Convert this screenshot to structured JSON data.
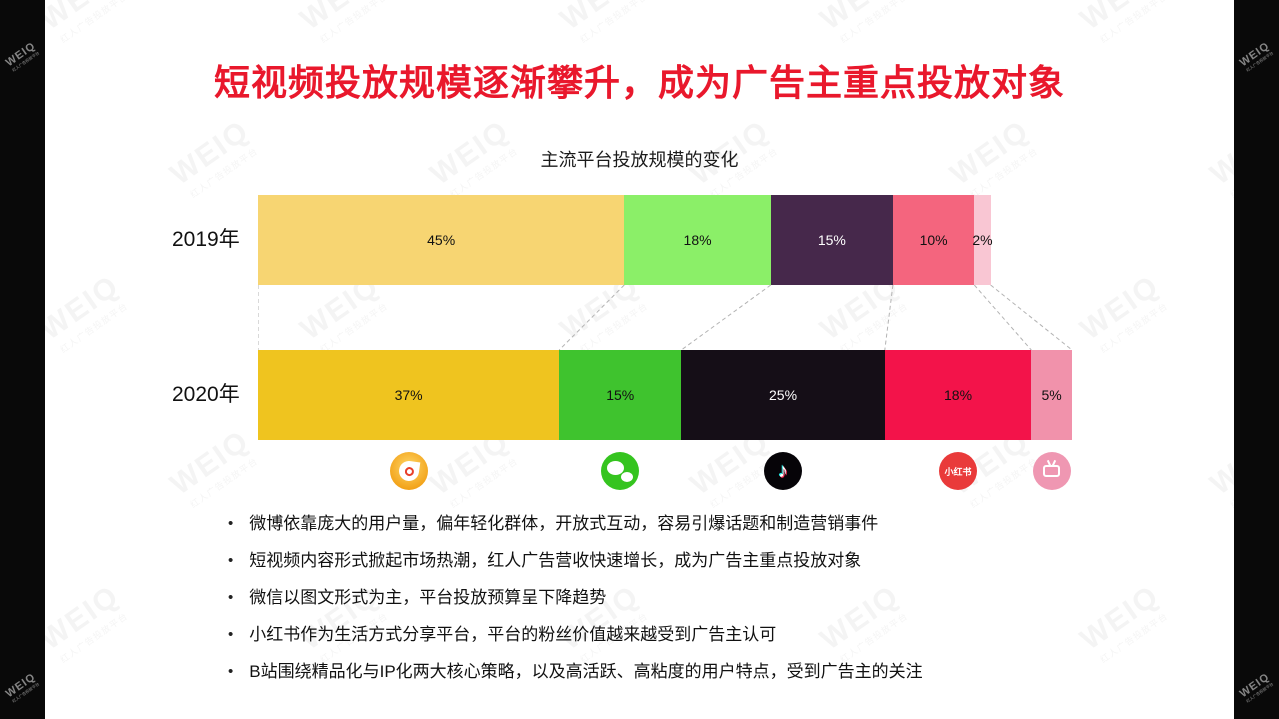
{
  "page": {
    "title": "短视频投放规模逐渐攀升，成为广告主重点投放对象",
    "accent_color": "#e9182c",
    "bullet_char": "•"
  },
  "watermark": {
    "brand": "WEIQ",
    "tagline": "红人广告投放平台"
  },
  "chart_data": {
    "type": "bar",
    "variant": "horizontal_stacked",
    "title": "主流平台投放规模的变化",
    "unit": "%",
    "xlim": [
      0,
      100
    ],
    "grid": false,
    "legend_position": "icons-below-bars",
    "categories": [
      "2019年",
      "2020年"
    ],
    "platforms": [
      "微博",
      "微信",
      "抖音",
      "小红书",
      "B站"
    ],
    "series": [
      {
        "name": "微博",
        "values": [
          45,
          37
        ]
      },
      {
        "name": "微信",
        "values": [
          18,
          15
        ]
      },
      {
        "name": "抖音",
        "values": [
          15,
          25
        ]
      },
      {
        "name": "小红书",
        "values": [
          10,
          18
        ]
      },
      {
        "name": "B站",
        "values": [
          2,
          5
        ]
      }
    ],
    "rows": [
      {
        "label": "2019年",
        "segments": [
          {
            "platform": "微博",
            "value": 45,
            "label": "45%",
            "color": "#f7d572",
            "text_color": "#111111"
          },
          {
            "platform": "微信",
            "value": 18,
            "label": "18%",
            "color": "#8bef68",
            "text_color": "#111111"
          },
          {
            "platform": "抖音",
            "value": 15,
            "label": "15%",
            "color": "#46284b",
            "text_color": "#ffffff"
          },
          {
            "platform": "小红书",
            "value": 10,
            "label": "10%",
            "color": "#f4657e",
            "text_color": "#111111"
          },
          {
            "platform": "B站",
            "value": 2,
            "label": "2%",
            "color": "#f9c6d3",
            "text_color": "#111111"
          }
        ]
      },
      {
        "label": "2020年",
        "segments": [
          {
            "platform": "微博",
            "value": 37,
            "label": "37%",
            "color": "#efc41f",
            "text_color": "#111111"
          },
          {
            "platform": "微信",
            "value": 15,
            "label": "15%",
            "color": "#3fc32e",
            "text_color": "#111111"
          },
          {
            "platform": "抖音",
            "value": 25,
            "label": "25%",
            "color": "#150e17",
            "text_color": "#ffffff"
          },
          {
            "platform": "小红书",
            "value": 18,
            "label": "18%",
            "color": "#f3134a",
            "text_color": "#111111"
          },
          {
            "platform": "B站",
            "value": 5,
            "label": "5%",
            "color": "#f192ab",
            "text_color": "#111111"
          }
        ]
      }
    ]
  },
  "platform_icons": [
    {
      "name": "weibo-icon",
      "platform": "微博"
    },
    {
      "name": "wechat-icon",
      "platform": "微信"
    },
    {
      "name": "douyin-icon",
      "platform": "抖音",
      "glyph": "♪"
    },
    {
      "name": "xiaohongshu-icon",
      "platform": "小红书",
      "text": "小红书"
    },
    {
      "name": "bilibili-icon",
      "platform": "B站"
    }
  ],
  "bullets": [
    "微博依靠庞大的用户量，偏年轻化群体，开放式互动，容易引爆话题和制造营销事件",
    "短视频内容形式掀起市场热潮，红人广告营收快速增长，成为广告主重点投放对象",
    "微信以图文形式为主，平台投放预算呈下降趋势",
    "小红书作为生活方式分享平台，平台的粉丝价值越来越受到广告主认可",
    "B站围绕精品化与IP化两大核心策略，以及高活跃、高粘度的用户特点，受到广告主的关注"
  ]
}
